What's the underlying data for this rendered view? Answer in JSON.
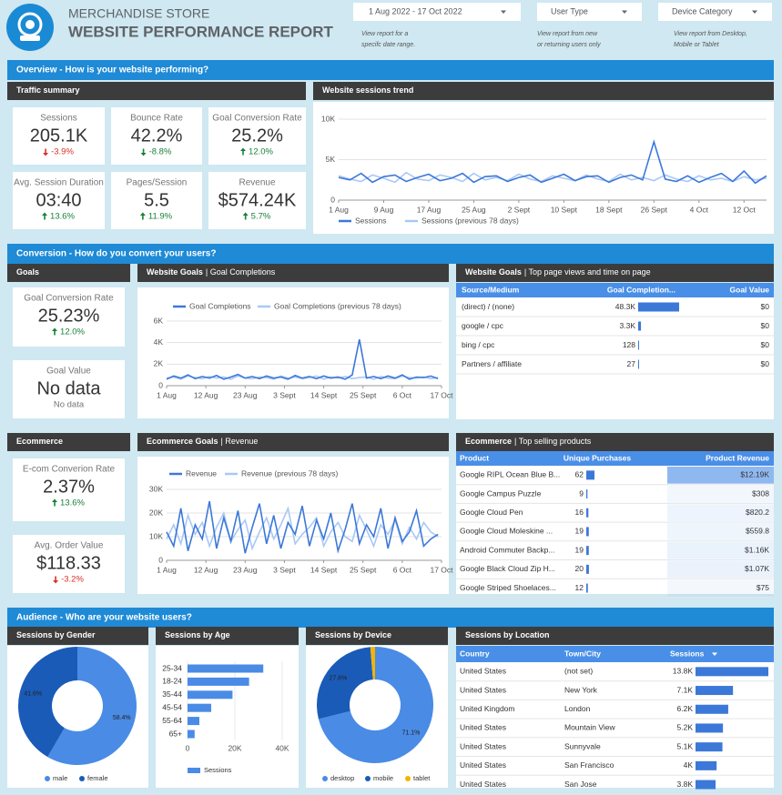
{
  "header": {
    "title": "MERCHANDISE STORE",
    "subtitle": "WEBSITE PERFORMANCE REPORT"
  },
  "filters": [
    {
      "label": "1 Aug 2022 - 17 Oct 2022",
      "note": [
        "View report for a",
        "specifc date range."
      ]
    },
    {
      "label": "User Type",
      "note": [
        "View report from new",
        "or returning users only"
      ]
    },
    {
      "label": "Device Category",
      "note": [
        "View report from Desktop,",
        "Mobile or Tablet"
      ]
    }
  ],
  "overview": {
    "heading": "Overview -  How is your website performing?",
    "traffic_summary": {
      "title": "Traffic summary",
      "cards": [
        {
          "label": "Sessions",
          "value": "205.1K",
          "delta": "-3.9%",
          "direction": "down",
          "delta_color": "#d93025"
        },
        {
          "label": "Bounce Rate",
          "value": "42.2%",
          "delta": "-8.8%",
          "direction": "down",
          "delta_color": "#188038"
        },
        {
          "label": "Goal Conversion Rate",
          "value": "25.2%",
          "delta": "12.0%",
          "direction": "up",
          "delta_color": "#188038"
        },
        {
          "label": "Avg. Session Duration",
          "value": "03:40",
          "delta": "13.6%",
          "direction": "up",
          "delta_color": "#188038"
        },
        {
          "label": "Pages/Session",
          "value": "5.5",
          "delta": "11.9%",
          "direction": "up",
          "delta_color": "#188038"
        },
        {
          "label": "Revenue",
          "value": "$574.24K",
          "delta": "5.7%",
          "direction": "up",
          "delta_color": "#188038"
        }
      ]
    },
    "sessions_trend": {
      "type": "line",
      "title": "Website sessions trend",
      "xlim": [
        0,
        38
      ],
      "xticks": [
        {
          "value": 0,
          "label": "1 Aug"
        },
        {
          "value": 4,
          "label": "9 Aug"
        },
        {
          "value": 8,
          "label": "17 Aug"
        },
        {
          "value": 12,
          "label": "25 Aug"
        },
        {
          "value": 16,
          "label": "2 Sept"
        },
        {
          "value": 20,
          "label": "10 Sept"
        },
        {
          "value": 24,
          "label": "18 Sept"
        },
        {
          "value": 28,
          "label": "26 Sept"
        },
        {
          "value": 32,
          "label": "4 Oct"
        },
        {
          "value": 36,
          "label": "12 Oct"
        }
      ],
      "ylim": [
        0,
        10000
      ],
      "yticks": [
        0,
        {
          "value": 5000,
          "label": "5K"
        },
        {
          "value": 10000,
          "label": "10K"
        }
      ],
      "series": [
        {
          "name": "Sessions",
          "color": "#3c78d8",
          "values": [
            2800,
            2500,
            3300,
            2200,
            2900,
            3100,
            2300,
            2800,
            3200,
            2400,
            2700,
            3300,
            2200,
            2900,
            3000,
            2300,
            2800,
            3100,
            2200,
            2700,
            3200,
            2400,
            2900,
            3000,
            2200,
            2800,
            3100,
            2500,
            7200,
            2600,
            2300,
            3000,
            2200,
            2800,
            3300,
            2300,
            3600,
            2100,
            3000
          ]
        },
        {
          "name": "Sessions (previous 78 days)",
          "color": "#a9c8f5",
          "values": [
            3000,
            2600,
            2300,
            3100,
            2700,
            2200,
            3400,
            2600,
            2400,
            3100,
            2800,
            2300,
            3300,
            2500,
            2800,
            2400,
            3200,
            2600,
            2300,
            3000,
            2700,
            2400,
            3100,
            2600,
            2300,
            3200,
            2500,
            2800,
            2400,
            3100,
            2600,
            2300,
            3000,
            2500,
            2700,
            2300,
            2900,
            2500,
            2700
          ]
        }
      ]
    }
  },
  "conversion": {
    "heading": "Conversion -  How do you convert your users?",
    "goals": {
      "title": "Goals",
      "cards": [
        {
          "label": "Goal Conversion Rate",
          "value": "25.23%",
          "delta": "12.0%",
          "direction": "up",
          "delta_color": "#188038"
        },
        {
          "label": "Goal Value",
          "value": "No data",
          "note": "No data"
        }
      ]
    },
    "goal_completions": {
      "type": "line",
      "title": "Website Goals",
      "subtitle": "| Goal Completions",
      "xlim": [
        0,
        38.5
      ],
      "xticks": [
        {
          "value": 0,
          "label": "1 Aug"
        },
        {
          "value": 5.5,
          "label": "12 Aug"
        },
        {
          "value": 11,
          "label": "23 Aug"
        },
        {
          "value": 16.5,
          "label": "3 Sept"
        },
        {
          "value": 22,
          "label": "14 Sept"
        },
        {
          "value": 27.5,
          "label": "25 Sept"
        },
        {
          "value": 33,
          "label": "6 Oct"
        },
        {
          "value": 38.5,
          "label": "17 Oct"
        }
      ],
      "ylim": [
        0,
        6000
      ],
      "yticks": [
        0,
        {
          "value": 2000,
          "label": "2K"
        },
        {
          "value": 4000,
          "label": "4K"
        },
        {
          "value": 6000,
          "label": "6K"
        }
      ],
      "series": [
        {
          "name": "Goal Completions",
          "color": "#3c78d8",
          "values": [
            600,
            900,
            700,
            1000,
            650,
            850,
            700,
            950,
            600,
            800,
            1050,
            700,
            850,
            650,
            900,
            700,
            800,
            600,
            950,
            700,
            850,
            650,
            900,
            700,
            800,
            600,
            1000,
            4300,
            700,
            850,
            650,
            900,
            700,
            1000,
            600,
            800,
            750,
            900,
            650
          ]
        },
        {
          "name": "Goal Completions (previous 78 days)",
          "color": "#a9c8f5",
          "values": [
            700,
            800,
            600,
            900,
            750,
            650,
            850,
            700,
            800,
            600,
            900,
            700,
            650,
            800,
            750,
            600,
            900,
            700,
            800,
            650,
            750,
            900,
            600,
            800,
            700,
            850,
            650,
            750,
            800,
            600,
            850,
            700,
            650,
            900,
            750,
            700,
            800,
            650,
            750
          ]
        }
      ]
    },
    "goals_table": {
      "title": "Website Goals",
      "subtitle": "| Top page views and time on page",
      "columns": [
        "Source/Medium",
        "Goal Completion...",
        "Goal Value"
      ],
      "rows": [
        {
          "source": "(direct) / (none)",
          "completions": 48300,
          "completions_label": "48.3K",
          "goal_value": "$0"
        },
        {
          "source": "google / cpc",
          "completions": 3300,
          "completions_label": "3.3K",
          "goal_value": "$0"
        },
        {
          "source": "bing / cpc",
          "completions": 128,
          "goal_value": "$0"
        },
        {
          "source": "Partners / affiliate",
          "completions": 27,
          "goal_value": "$0"
        }
      ]
    },
    "ecommerce": {
      "title": "Ecommerce",
      "cards": [
        {
          "label": "E-com Converion Rate",
          "value": "2.37%",
          "delta": "13.6%",
          "direction": "up",
          "delta_color": "#188038"
        },
        {
          "label": "Avg. Order Value",
          "value": "$118.33",
          "delta": "-3.2%",
          "direction": "down",
          "delta_color": "#d93025"
        }
      ]
    },
    "revenue": {
      "type": "line",
      "title": "Ecommerce Goals",
      "subtitle": "| Revenue",
      "xlim": [
        0,
        38.5
      ],
      "xticks": [
        {
          "value": 0,
          "label": "1 Aug"
        },
        {
          "value": 5.5,
          "label": "12 Aug"
        },
        {
          "value": 11,
          "label": "23 Aug"
        },
        {
          "value": 16.5,
          "label": "3 Sept"
        },
        {
          "value": 22,
          "label": "14 Sept"
        },
        {
          "value": 27.5,
          "label": "25 Sept"
        },
        {
          "value": 33,
          "label": "6 Oct"
        },
        {
          "value": 38.5,
          "label": "17 Oct"
        }
      ],
      "ylim": [
        0,
        30000
      ],
      "yticks": [
        0,
        {
          "value": 10000,
          "label": "10K"
        },
        {
          "value": 20000,
          "label": "20K"
        },
        {
          "value": 30000,
          "label": "30K"
        }
      ],
      "series": [
        {
          "name": "Revenue",
          "color": "#3c78d8",
          "values": [
            12000,
            6000,
            22000,
            4000,
            15000,
            9000,
            25000,
            5000,
            18000,
            8000,
            21000,
            3000,
            14000,
            24000,
            7000,
            19000,
            5000,
            16000,
            11000,
            23000,
            6000,
            17000,
            9000,
            20000,
            4000,
            13000,
            24000,
            7000,
            15000,
            10000,
            22000,
            5000,
            18000,
            8000,
            12000,
            21000,
            6000,
            9000,
            11000
          ]
        },
        {
          "name": "Revenue (previous 78 days)",
          "color": "#a9c8f5",
          "values": [
            9000,
            15000,
            7000,
            19000,
            11000,
            16000,
            6000,
            14000,
            20000,
            8000,
            13000,
            17000,
            5000,
            12000,
            18000,
            9000,
            15000,
            22000,
            7000,
            11000,
            14000,
            18000,
            6000,
            12000,
            16000,
            10000,
            8000,
            19000,
            13000,
            6000,
            15000,
            11000,
            17000,
            7000,
            14000,
            9000,
            16000,
            12000,
            10000
          ]
        }
      ]
    },
    "products_table": {
      "title": "Ecommerce",
      "subtitle": "| Top selling products",
      "columns": [
        "Product",
        "Unique Purchases",
        "Product Revenue"
      ],
      "rows": [
        {
          "product": "Google RIPL Ocean Blue B...",
          "purchases": 62,
          "revenue": 12190,
          "revenue_label": "$12.19K"
        },
        {
          "product": "Google Campus Puzzle",
          "purchases": 9,
          "revenue": 308,
          "revenue_label": "$308"
        },
        {
          "product": "Google Cloud Pen",
          "purchases": 16,
          "revenue": 820.2,
          "revenue_label": "$820.2"
        },
        {
          "product": "Google Cloud Moleskine ...",
          "purchases": 19,
          "revenue": 559.8,
          "revenue_label": "$559.8"
        },
        {
          "product": "Android Commuter Backp...",
          "purchases": 19,
          "revenue": 1160,
          "revenue_label": "$1.16K"
        },
        {
          "product": "Google Black Cloud Zip H...",
          "purchases": 20,
          "revenue": 1070,
          "revenue_label": "$1.07K"
        },
        {
          "product": "Google Striped Shoelaces...",
          "purchases": 12,
          "revenue": 75,
          "revenue_label": "$75"
        }
      ]
    }
  },
  "audience": {
    "heading": "Audience -  Who are your website users?",
    "gender": {
      "type": "pie",
      "title": "Sessions by Gender",
      "categories": [
        "male",
        "female"
      ],
      "values": [
        58.4,
        41.6
      ],
      "value_labels": [
        "58.4%",
        "41.6%"
      ],
      "colors": [
        "#4a8be6",
        "#1a5bb8"
      ]
    },
    "age": {
      "type": "bar",
      "title": "Sessions by Age",
      "categories": [
        "25-34",
        "18-24",
        "35-44",
        "45-54",
        "55-64",
        "65+"
      ],
      "xlim": [
        0,
        40000
      ],
      "xticks": [
        0,
        {
          "value": 20000,
          "label": "20K"
        },
        {
          "value": 40000,
          "label": "40K"
        }
      ],
      "series": [
        {
          "name": "Sessions",
          "color": "#4a8be6",
          "values": [
            32000,
            26000,
            19000,
            10000,
            5000,
            3000
          ]
        }
      ]
    },
    "device": {
      "type": "pie",
      "title": "Sessions by Device",
      "categories": [
        "desktop",
        "mobile",
        "tablet"
      ],
      "values": [
        71.1,
        27.6,
        1.3
      ],
      "value_labels": [
        "71.1%",
        "27.6%",
        null
      ],
      "colors": [
        "#4a8be6",
        "#1a5bb8",
        "#f4b400"
      ]
    },
    "location": {
      "title": "Sessions by Location",
      "columns": [
        "Country",
        "Town/City",
        "Sessions"
      ],
      "rows": [
        {
          "country": "United States",
          "city": "(not set)",
          "sessions": 13800,
          "sessions_label": "13.8K"
        },
        {
          "country": "United States",
          "city": "New York",
          "sessions": 7100,
          "sessions_label": "7.1K"
        },
        {
          "country": "United Kingdom",
          "city": "London",
          "sessions": 6200,
          "sessions_label": "6.2K"
        },
        {
          "country": "United States",
          "city": "Mountain View",
          "sessions": 5200,
          "sessions_label": "5.2K"
        },
        {
          "country": "United States",
          "city": "Sunnyvale",
          "sessions": 5100,
          "sessions_label": "5.1K"
        },
        {
          "country": "United States",
          "city": "San Francisco",
          "sessions": 4000,
          "sessions_label": "4K"
        },
        {
          "country": "United States",
          "city": "San Jose",
          "sessions": 3800,
          "sessions_label": "3.8K"
        }
      ]
    }
  }
}
